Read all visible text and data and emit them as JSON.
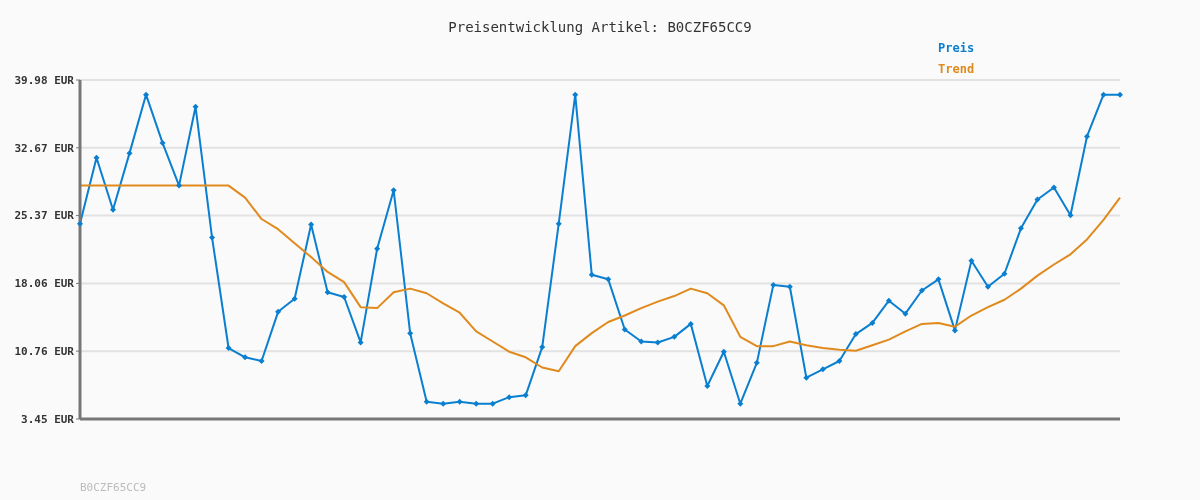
{
  "chart_data": {
    "type": "line",
    "title": "Preisentwicklung Artikel: B0CZF65CC9",
    "categories": [
      null,
      null,
      null,
      null,
      null,
      null,
      null,
      null,
      null,
      null,
      null,
      null,
      null,
      null,
      null,
      null,
      null,
      null,
      null,
      null,
      null,
      null,
      null,
      null,
      null,
      null,
      null,
      null,
      null,
      null,
      null,
      null,
      null,
      null,
      null,
      null,
      null,
      null,
      null,
      null,
      null,
      null,
      null,
      null,
      null,
      null,
      null,
      null,
      null,
      null,
      null,
      null,
      null,
      null,
      null,
      null,
      null,
      null,
      null,
      null,
      null,
      null,
      null,
      null
    ],
    "series": [
      {
        "name": "Preis",
        "color": "#0a7fd0",
        "marker": "diamond",
        "values": [
          24.5,
          31.6,
          26.0,
          32.1,
          38.4,
          33.2,
          28.6,
          37.1,
          23.0,
          11.1,
          10.1,
          9.7,
          15.0,
          16.4,
          24.4,
          17.1,
          16.6,
          11.7,
          21.8,
          28.1,
          12.7,
          5.3,
          5.1,
          5.3,
          5.1,
          5.1,
          5.8,
          6.0,
          11.2,
          24.5,
          38.4,
          19.0,
          18.5,
          13.1,
          11.8,
          11.7,
          12.3,
          13.7,
          7.0,
          10.7,
          5.1,
          9.5,
          17.9,
          17.7,
          7.9,
          8.8,
          9.7,
          12.6,
          13.8,
          16.2,
          14.8,
          17.3,
          18.5,
          13.0,
          20.5,
          17.7,
          19.1,
          24.0,
          27.1,
          28.4,
          25.4,
          33.9,
          38.4,
          38.4
        ]
      },
      {
        "name": "Trend",
        "color": "#e08a1e",
        "marker": "none",
        "values": [
          28.6,
          28.6,
          28.6,
          28.6,
          28.6,
          28.6,
          28.6,
          28.6,
          28.6,
          28.6,
          27.3,
          25.0,
          23.9,
          22.4,
          20.9,
          19.3,
          18.2,
          15.5,
          15.4,
          17.1,
          17.5,
          17.0,
          15.9,
          14.9,
          12.9,
          11.8,
          10.7,
          10.1,
          9.0,
          8.6,
          11.3,
          12.7,
          13.9,
          14.6,
          15.4,
          16.1,
          16.7,
          17.5,
          17.0,
          15.7,
          12.3,
          11.3,
          11.3,
          11.8,
          11.4,
          11.1,
          10.9,
          10.8,
          11.4,
          12.0,
          12.9,
          13.7,
          13.8,
          13.4,
          14.6,
          15.5,
          16.3,
          17.5,
          18.9,
          20.1,
          21.2,
          22.8,
          24.9,
          27.3
        ]
      }
    ],
    "ylim": [
      3.45,
      39.98
    ],
    "yticks": [
      {
        "value": 3.45,
        "label": "3.45 EUR"
      },
      {
        "value": 10.76,
        "label": "10.76 EUR"
      },
      {
        "value": 18.06,
        "label": "18.06 EUR"
      },
      {
        "value": 25.37,
        "label": "25.37 EUR"
      },
      {
        "value": 32.67,
        "label": "32.67 EUR"
      },
      {
        "value": 39.98,
        "label": "39.98 EUR"
      }
    ],
    "grid": "y",
    "legend": "top right",
    "tick_labels": "y",
    "annotations": [
      "B0CZF65CC9"
    ]
  }
}
